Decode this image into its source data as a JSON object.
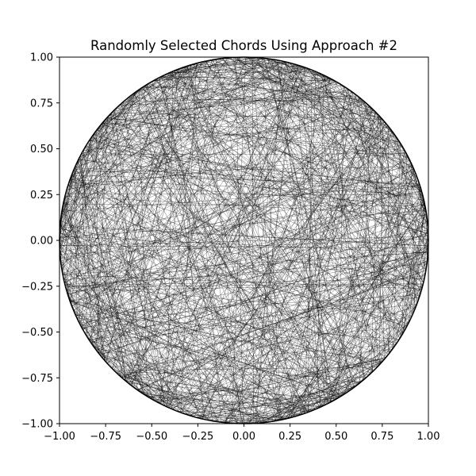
{
  "chart_data": {
    "type": "line",
    "title": "Randomly Selected Chords Using Approach #2",
    "xlabel": "",
    "ylabel": "",
    "xlim": [
      -1.0,
      1.0
    ],
    "ylim": [
      -1.0,
      1.0
    ],
    "x_ticks": [
      -1.0,
      -0.75,
      -0.5,
      -0.25,
      0.0,
      0.25,
      0.5,
      0.75,
      1.0
    ],
    "y_ticks": [
      -1.0,
      -0.75,
      -0.5,
      -0.25,
      0.0,
      0.25,
      0.5,
      0.75,
      1.0
    ],
    "x_tick_labels": [
      "−1.00",
      "−0.75",
      "−0.50",
      "−0.25",
      "0.00",
      "0.25",
      "0.50",
      "0.75",
      "1.00"
    ],
    "y_tick_labels": [
      "−1.00",
      "−0.75",
      "−0.50",
      "−0.25",
      "0.00",
      "0.25",
      "0.50",
      "0.75",
      "1.00"
    ],
    "grid": false,
    "legend": false,
    "circle": {
      "center": [
        0.0,
        0.0
      ],
      "radius": 1.0
    },
    "chord_color": "#000000",
    "chord_count_estimate": 1000
  }
}
